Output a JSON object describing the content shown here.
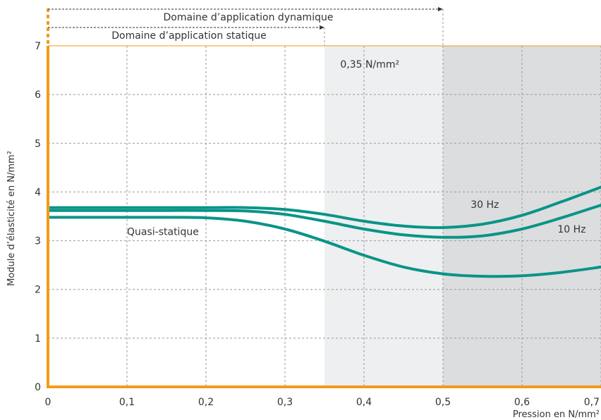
{
  "chart_data": {
    "type": "line",
    "xlabel": "Pression en N/mm²",
    "ylabel": "Module d’élasticité en N/mm²",
    "xlim": [
      0,
      0.7
    ],
    "ylim": [
      0,
      7
    ],
    "xticks": [
      0,
      0.1,
      0.2,
      0.3,
      0.4,
      0.5,
      0.6,
      0.7
    ],
    "xtick_labels": [
      "0",
      "0,1",
      "0,2",
      "0,3",
      "0,4",
      "0,5",
      "0,6",
      "0,7"
    ],
    "yticks": [
      0,
      1,
      2,
      3,
      4,
      5,
      6,
      7
    ],
    "ytick_labels": [
      "0",
      "1",
      "2",
      "3",
      "4",
      "5",
      "6",
      "7"
    ],
    "grid": true,
    "colors": {
      "curve": "#0a9488",
      "axis": "#f39a1b",
      "static_zone": "#eeeff0",
      "dynamic_zone": "#dcdddf"
    },
    "regions": [
      {
        "x0": 0.35,
        "x1": 0.5,
        "shade": "static_zone"
      },
      {
        "x0": 0.5,
        "x1": 0.7,
        "shade": "dynamic_zone"
      }
    ],
    "ranges": [
      {
        "label": "Domaine d’application dynamique",
        "x0": 0,
        "x1": 0.5
      },
      {
        "label": "Domaine d’application statique",
        "x0": 0,
        "x1": 0.35
      }
    ],
    "annotations": [
      {
        "text": "0,35 N/mm²",
        "x": 0.37,
        "y": 6.55
      },
      {
        "text": "30 Hz",
        "x": 0.535,
        "y": 3.67
      },
      {
        "text": "10 Hz",
        "x": 0.645,
        "y": 3.17
      },
      {
        "text": "Quasi-statique",
        "x": 0.1,
        "y": 3.12
      }
    ],
    "series": [
      {
        "name": "30 Hz",
        "x": [
          0,
          0.05,
          0.1,
          0.15,
          0.2,
          0.25,
          0.3,
          0.35,
          0.4,
          0.45,
          0.5,
          0.55,
          0.6,
          0.65,
          0.7
        ],
        "y": [
          3.68,
          3.68,
          3.68,
          3.68,
          3.68,
          3.68,
          3.64,
          3.54,
          3.4,
          3.3,
          3.27,
          3.34,
          3.52,
          3.8,
          4.1
        ]
      },
      {
        "name": "10 Hz",
        "x": [
          0,
          0.05,
          0.1,
          0.15,
          0.2,
          0.25,
          0.3,
          0.35,
          0.4,
          0.45,
          0.5,
          0.55,
          0.6,
          0.65,
          0.7
        ],
        "y": [
          3.62,
          3.62,
          3.62,
          3.62,
          3.62,
          3.61,
          3.54,
          3.4,
          3.24,
          3.12,
          3.07,
          3.1,
          3.24,
          3.47,
          3.73
        ]
      },
      {
        "name": "Quasi-statique",
        "x": [
          0,
          0.05,
          0.1,
          0.15,
          0.2,
          0.25,
          0.3,
          0.35,
          0.4,
          0.45,
          0.5,
          0.55,
          0.6,
          0.65,
          0.7
        ],
        "y": [
          3.48,
          3.48,
          3.48,
          3.48,
          3.47,
          3.4,
          3.24,
          2.99,
          2.7,
          2.46,
          2.32,
          2.27,
          2.28,
          2.35,
          2.46
        ]
      }
    ]
  }
}
